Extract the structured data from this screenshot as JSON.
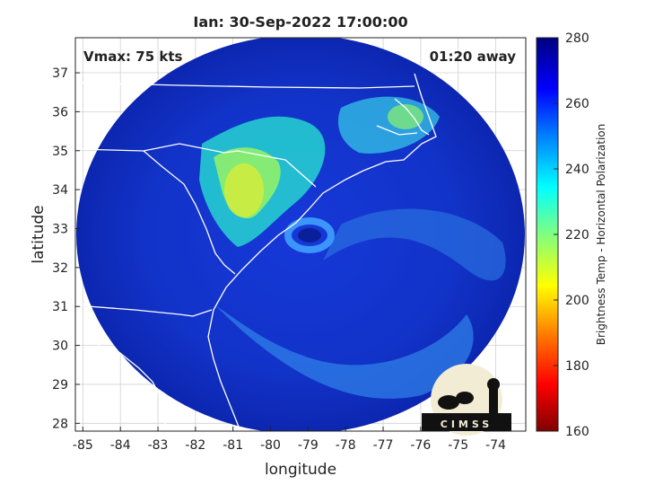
{
  "chart_data": {
    "type": "heatmap",
    "title": "Ian: 30-Sep-2022 17:00:00",
    "xlabel": "longitude",
    "ylabel": "latitude",
    "xlim": [
      -85.2,
      -73.2
    ],
    "ylim": [
      27.8,
      37.9
    ],
    "xticks": [
      -85,
      -84,
      -83,
      -82,
      -81,
      -80,
      -79,
      -78,
      -77,
      -76,
      -75,
      -74
    ],
    "yticks": [
      28,
      29,
      30,
      31,
      32,
      33,
      34,
      35,
      36,
      37
    ],
    "grid": true,
    "annotations": {
      "vmax": "Vmax: 75 kts",
      "away": "01:20 away"
    },
    "storm_center": {
      "lon": -79.2,
      "lat": 32.8
    },
    "swath_center": {
      "lon": -79.2,
      "lat": 32.85
    },
    "colorbar": {
      "label": "Brightness Temp - Horizontal Polarization",
      "range": [
        160,
        280
      ],
      "ticks": [
        160,
        180,
        200,
        220,
        240,
        260,
        280
      ],
      "colormap": [
        "#800000",
        "#ff0000",
        "#ff8000",
        "#ffff00",
        "#80ff80",
        "#00ffff",
        "#0080ff",
        "#0000ff",
        "#000080"
      ]
    },
    "logo_text": "CIMSS"
  },
  "colors": {
    "background": "#ffffff",
    "grid": "#d0d0d0",
    "coast": "#ffffff"
  }
}
